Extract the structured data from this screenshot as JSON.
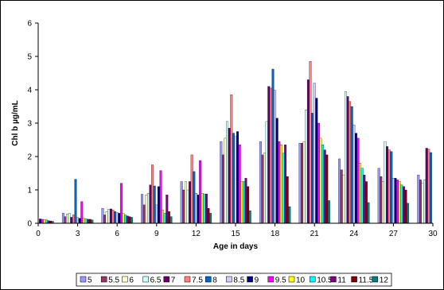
{
  "chart_data": {
    "type": "bar",
    "title": "",
    "xlabel": "Age in days",
    "ylabel": "Chl b µg/mL",
    "ylim": [
      0,
      6
    ],
    "yticks": [
      "0",
      "1",
      "2",
      "3",
      "4",
      "5",
      "6"
    ],
    "xlim": [
      0,
      30
    ],
    "xticks": [
      "0",
      "3",
      "6",
      "9",
      "12",
      "15",
      "18",
      "21",
      "24",
      "27",
      "30"
    ],
    "grid": false,
    "legend_position": "bottom",
    "categories": [
      0,
      3,
      6,
      9,
      12,
      15,
      18,
      21,
      24,
      27,
      30
    ],
    "series": [
      {
        "name": "5",
        "color": "#9999FF",
        "values": [
          0.15,
          0.3,
          0.45,
          0.87,
          1.25,
          2.45,
          2.45,
          2.4,
          1.93,
          1.65,
          1.45
        ]
      },
      {
        "name": "5.5",
        "color": "#993366",
        "values": [
          0.16,
          0.2,
          0.25,
          0.55,
          1.0,
          2.05,
          2.05,
          2.4,
          1.6,
          1.4,
          1.3
        ]
      },
      {
        "name": "6",
        "color": "#FFFFCC",
        "values": [
          0.17,
          0.28,
          0.35,
          0.85,
          1.25,
          2.55,
          2.1,
          2.45,
          1.45,
          1.25,
          1.2
        ]
      },
      {
        "name": "6.5",
        "color": "#CCFFFF",
        "values": [
          0.19,
          0.3,
          0.42,
          0.9,
          1.0,
          3.05,
          3.05,
          3.4,
          3.95,
          2.45,
          1.3
        ]
      },
      {
        "name": "7",
        "color": "#660066",
        "values": [
          0.2,
          0.18,
          0.43,
          1.15,
          1.25,
          2.85,
          4.1,
          4.3,
          3.8,
          2.3,
          2.25
        ]
      },
      {
        "name": "7.5",
        "color": "#FF8080",
        "values": [
          0.2,
          0.25,
          0.4,
          1.75,
          2.05,
          3.85,
          4.05,
          4.85,
          3.65,
          2.2,
          2.22
        ]
      },
      {
        "name": "8",
        "color": "#0066CC",
        "values": [
          0.17,
          1.32,
          0.35,
          1.12,
          1.55,
          2.7,
          4.62,
          3.3,
          3.5,
          2.15,
          2.12
        ]
      },
      {
        "name": "8.5",
        "color": "#CCCCFF",
        "values": [
          0.15,
          0.17,
          0.32,
          0.55,
          0.9,
          2.6,
          3.98,
          4.2,
          2.95,
          1.35,
          null
        ]
      },
      {
        "name": "9",
        "color": "#000080",
        "values": [
          0.13,
          0.15,
          0.3,
          1.1,
          0.85,
          2.75,
          3.15,
          3.75,
          2.7,
          1.35,
          null
        ]
      },
      {
        "name": "9.5",
        "color": "#FF00FF",
        "values": [
          0.12,
          0.65,
          1.2,
          1.58,
          1.88,
          2.35,
          2.45,
          3.0,
          2.55,
          1.3,
          null
        ]
      },
      {
        "name": "10",
        "color": "#FFFF00",
        "values": [
          0.11,
          0.15,
          0.3,
          0.4,
          0.9,
          1.25,
          2.35,
          2.55,
          1.8,
          1.25,
          null
        ]
      },
      {
        "name": "10.5",
        "color": "#00FFFF",
        "values": [
          0.1,
          0.14,
          0.25,
          0.3,
          0.88,
          1.25,
          2.1,
          2.35,
          1.65,
          1.15,
          null
        ]
      },
      {
        "name": "11",
        "color": "#800080",
        "values": [
          0.08,
          0.12,
          0.22,
          0.85,
          0.88,
          1.35,
          2.35,
          2.2,
          1.45,
          1.1,
          null
        ]
      },
      {
        "name": "11.5",
        "color": "#800000",
        "values": [
          0.07,
          0.12,
          0.2,
          0.35,
          0.45,
          1.1,
          1.4,
          2.05,
          1.25,
          1.0,
          null
        ]
      },
      {
        "name": "12",
        "color": "#008080",
        "values": [
          0.06,
          0.1,
          0.18,
          0.2,
          0.3,
          0.38,
          0.5,
          0.68,
          0.62,
          0.6,
          null
        ]
      }
    ]
  }
}
